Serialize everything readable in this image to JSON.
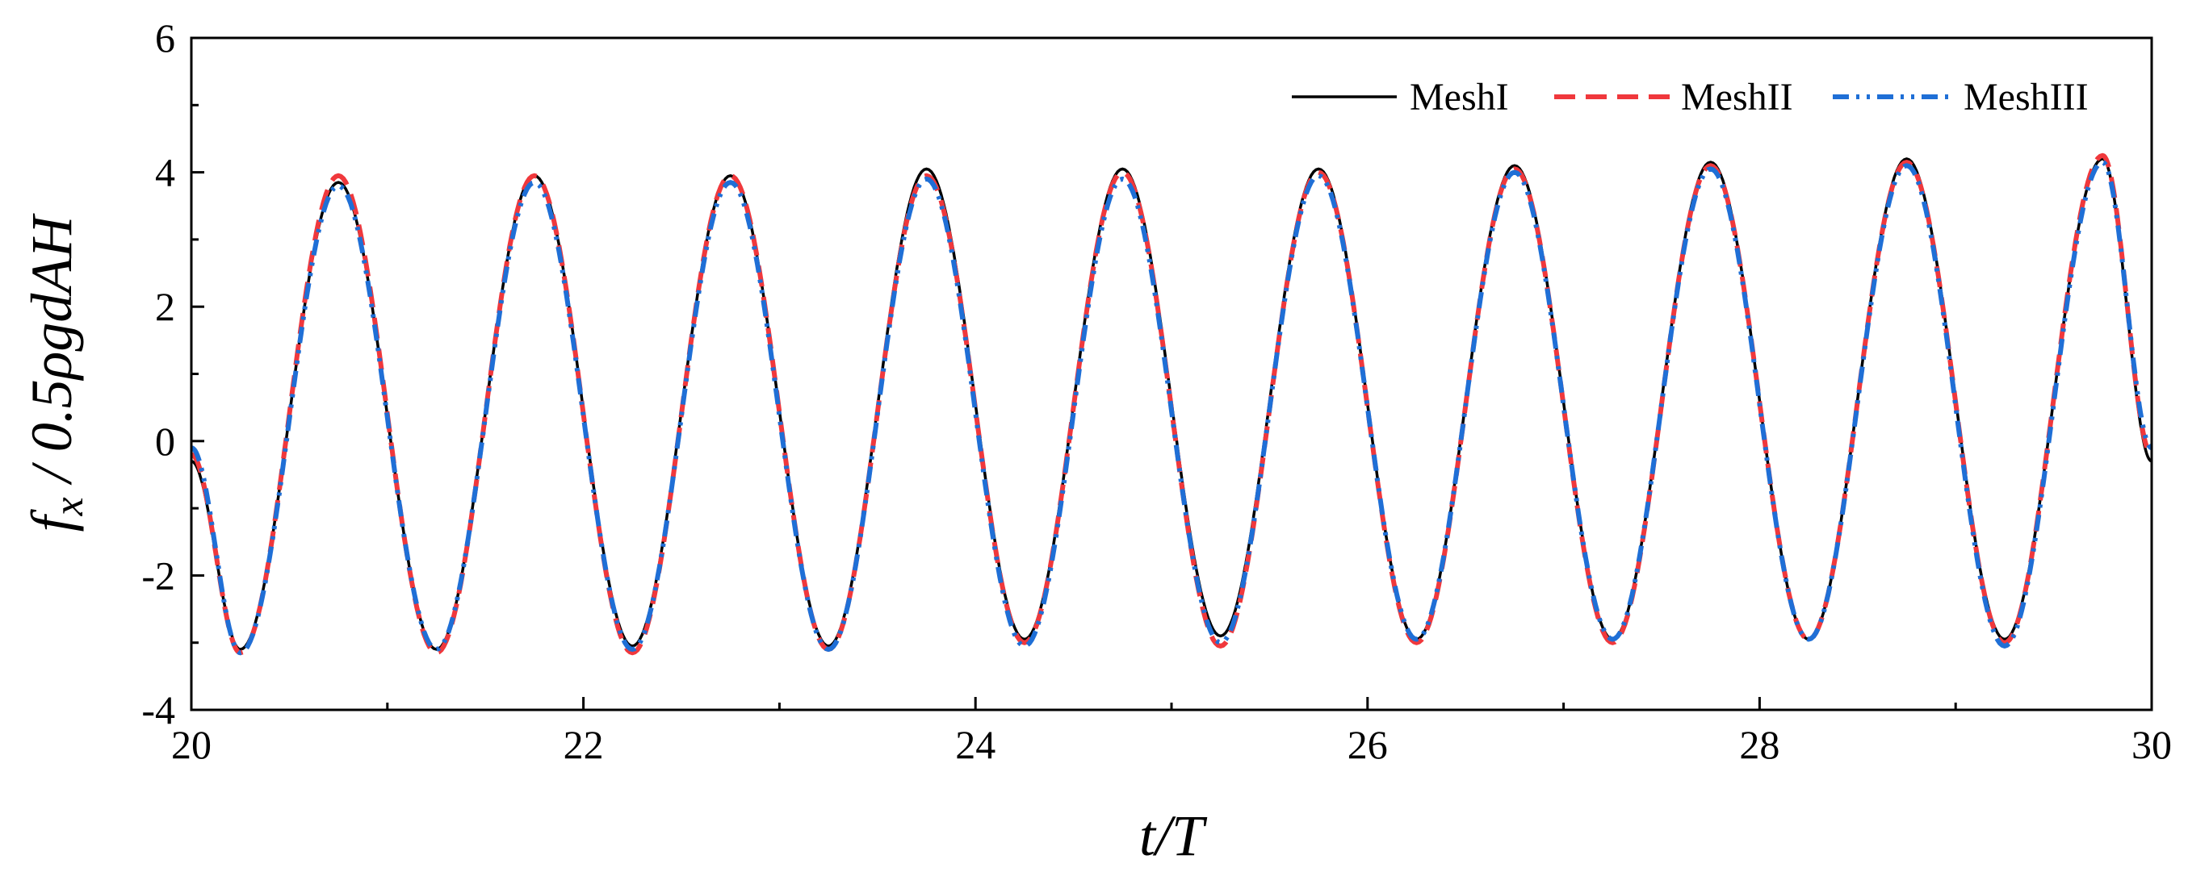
{
  "chart_data": {
    "type": "line",
    "title": "",
    "xlabel": "t/T",
    "ylabel_parts": {
      "f": "f",
      "sub": "x",
      "rest": " / 0.5ρgdAH"
    },
    "xlim": [
      20,
      30
    ],
    "ylim": [
      -4,
      6
    ],
    "x_ticks": [
      20,
      22,
      24,
      26,
      28,
      30
    ],
    "y_ticks": [
      -4,
      -2,
      0,
      2,
      4,
      6
    ],
    "grid": false,
    "legend_position": "top-right",
    "series": [
      {
        "name": "MeshI",
        "color": "#000000",
        "style": "solid",
        "x": [
          20.0,
          20.25,
          20.75,
          21.25,
          21.75,
          22.25,
          22.75,
          23.25,
          23.75,
          24.25,
          24.75,
          25.25,
          25.75,
          26.25,
          26.75,
          27.25,
          27.75,
          28.25,
          28.75,
          29.25,
          29.75,
          30.0
        ],
        "y": [
          -0.3,
          -3.1,
          3.85,
          -3.1,
          3.95,
          -3.05,
          3.95,
          -3.05,
          4.05,
          -2.95,
          4.05,
          -2.9,
          4.05,
          -2.95,
          4.1,
          -2.95,
          4.15,
          -2.95,
          4.2,
          -2.95,
          4.2,
          -0.3
        ]
      },
      {
        "name": "MeshII",
        "color": "#f0383c",
        "style": "dash",
        "x": [
          20.0,
          20.25,
          20.75,
          21.25,
          21.75,
          22.25,
          22.75,
          23.25,
          23.75,
          24.25,
          24.75,
          25.25,
          25.75,
          26.25,
          26.75,
          27.25,
          27.75,
          28.25,
          28.75,
          29.25,
          29.75,
          30.0
        ],
        "y": [
          -0.2,
          -3.15,
          3.95,
          -3.15,
          3.95,
          -3.15,
          3.95,
          -3.1,
          3.95,
          -3.0,
          4.0,
          -3.05,
          4.0,
          -3.0,
          4.05,
          -3.0,
          4.1,
          -2.95,
          4.15,
          -3.0,
          4.25,
          -0.2
        ]
      },
      {
        "name": "MeshIII",
        "color": "#1f6fd6",
        "style": "dash-dot-dot",
        "x": [
          20.0,
          20.25,
          20.75,
          21.25,
          21.75,
          22.25,
          22.75,
          23.25,
          23.75,
          24.25,
          24.75,
          25.25,
          25.75,
          26.25,
          26.75,
          27.25,
          27.75,
          28.25,
          28.75,
          29.25,
          29.75,
          30.0
        ],
        "y": [
          -0.1,
          -3.15,
          3.8,
          -3.1,
          3.85,
          -3.1,
          3.85,
          -3.1,
          3.9,
          -3.05,
          3.9,
          -3.0,
          3.95,
          -2.95,
          4.0,
          -2.95,
          4.05,
          -2.95,
          4.1,
          -3.05,
          4.15,
          -0.1
        ]
      }
    ]
  }
}
